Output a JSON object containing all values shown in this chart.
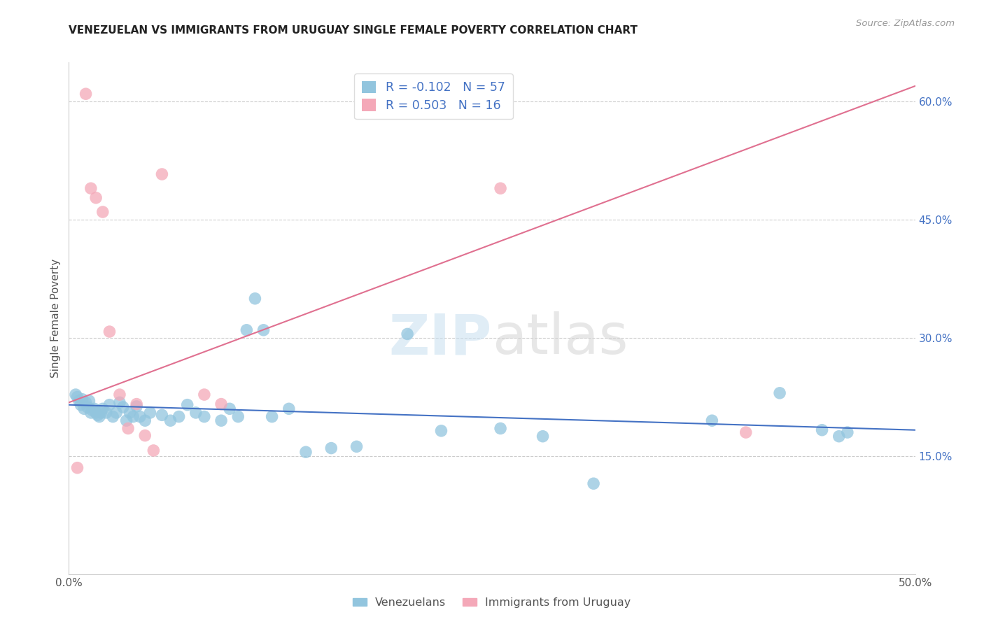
{
  "title": "VENEZUELAN VS IMMIGRANTS FROM URUGUAY SINGLE FEMALE POVERTY CORRELATION CHART",
  "source": "Source: ZipAtlas.com",
  "ylabel": "Single Female Poverty",
  "xlim": [
    0.0,
    0.5
  ],
  "ylim": [
    0.0,
    0.65
  ],
  "venezuelan_color": "#92c5de",
  "uruguay_color": "#f4a8b8",
  "venezuelan_line_color": "#4472c4",
  "uruguay_line_color": "#e07090",
  "legend_R_ven": "-0.102",
  "legend_N_ven": "57",
  "legend_R_uru": "0.503",
  "legend_N_uru": "16",
  "legend_text_color": "#4472c4",
  "ven_line_x0": 0.0,
  "ven_line_y0": 0.215,
  "ven_line_x1": 0.5,
  "ven_line_y1": 0.183,
  "uru_line_x0": 0.0,
  "uru_line_y0": 0.218,
  "uru_line_x1": 0.5,
  "uru_line_y1": 0.62,
  "ven_x": [
    0.004,
    0.005,
    0.006,
    0.007,
    0.008,
    0.009,
    0.01,
    0.011,
    0.012,
    0.013,
    0.014,
    0.015,
    0.016,
    0.017,
    0.018,
    0.019,
    0.02,
    0.022,
    0.024,
    0.026,
    0.028,
    0.03,
    0.032,
    0.034,
    0.036,
    0.038,
    0.04,
    0.042,
    0.045,
    0.048,
    0.055,
    0.06,
    0.065,
    0.07,
    0.075,
    0.08,
    0.09,
    0.095,
    0.1,
    0.105,
    0.11,
    0.115,
    0.12,
    0.13,
    0.14,
    0.155,
    0.17,
    0.2,
    0.22,
    0.255,
    0.28,
    0.31,
    0.38,
    0.42,
    0.445,
    0.455,
    0.46
  ],
  "ven_y": [
    0.228,
    0.225,
    0.22,
    0.215,
    0.222,
    0.21,
    0.218,
    0.212,
    0.22,
    0.205,
    0.208,
    0.21,
    0.205,
    0.202,
    0.2,
    0.205,
    0.21,
    0.205,
    0.215,
    0.2,
    0.205,
    0.218,
    0.212,
    0.195,
    0.205,
    0.2,
    0.213,
    0.2,
    0.195,
    0.205,
    0.202,
    0.195,
    0.2,
    0.215,
    0.205,
    0.2,
    0.195,
    0.21,
    0.2,
    0.31,
    0.35,
    0.31,
    0.2,
    0.21,
    0.155,
    0.16,
    0.162,
    0.305,
    0.182,
    0.185,
    0.175,
    0.115,
    0.195,
    0.23,
    0.183,
    0.175,
    0.18
  ],
  "uru_x": [
    0.01,
    0.013,
    0.016,
    0.02,
    0.024,
    0.03,
    0.035,
    0.04,
    0.045,
    0.05,
    0.055,
    0.08,
    0.09,
    0.255,
    0.4,
    0.005
  ],
  "uru_y": [
    0.61,
    0.49,
    0.478,
    0.46,
    0.308,
    0.228,
    0.185,
    0.216,
    0.176,
    0.157,
    0.508,
    0.228,
    0.216,
    0.49,
    0.18,
    0.135
  ]
}
